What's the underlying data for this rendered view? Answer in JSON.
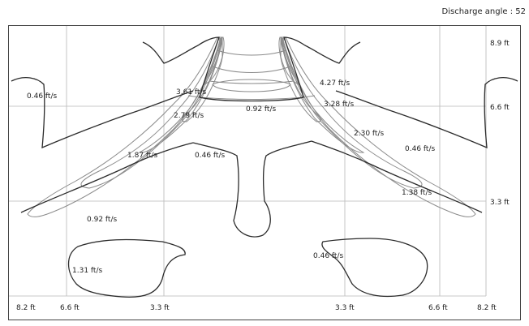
{
  "header": {
    "angle_label": "Discharge angle : 52"
  },
  "axes": {
    "x_ticks": [
      "8.2 ft",
      "6.6 ft",
      "3.3 ft",
      "3.3 ft",
      "6.6 ft",
      "8.2 ft"
    ],
    "y_ticks": [
      "8.9 ft",
      "6.6 ft",
      "3.3 ft"
    ]
  },
  "contour_labels": [
    "0.46 ft/s",
    "3.61 ft/s",
    "0.92 ft/s",
    "4.27 ft/s",
    "3.28 ft/s",
    "2.79 ft/s",
    "2.30 ft/s",
    "1.87 ft/s",
    "0.46 ft/s",
    "0.46 ft/s",
    "1.38 ft/s",
    "0.92 ft/s",
    "0.46 ft/s",
    "1.31 ft/s"
  ],
  "colors": {
    "grid": "#b8b8b8",
    "contour": "#8a8a8a",
    "outline": "#2b2b2b"
  }
}
